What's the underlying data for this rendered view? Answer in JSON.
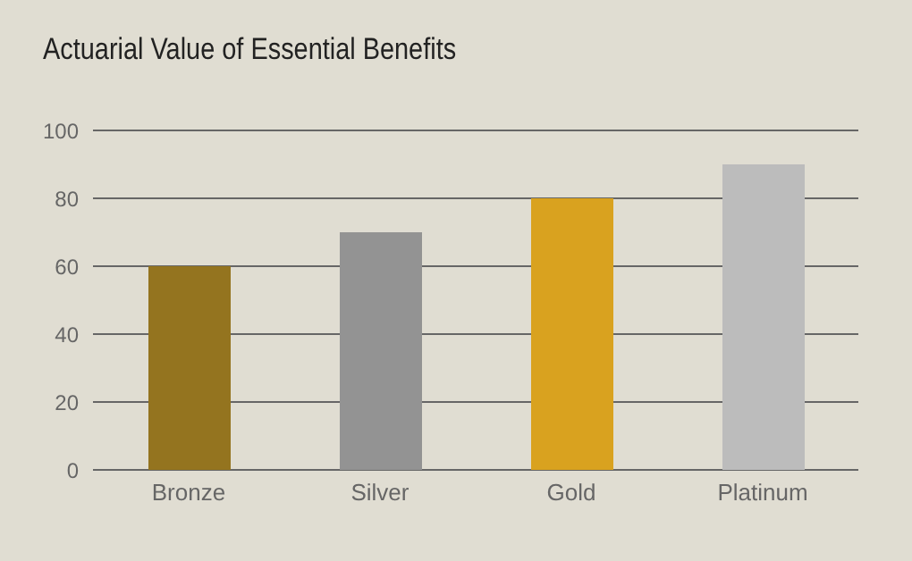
{
  "chart_data": {
    "type": "bar",
    "title": "Actuarial Value of Essential Benefits",
    "categories": [
      "Bronze",
      "Silver",
      "Gold",
      "Platinum"
    ],
    "values": [
      60,
      70,
      80,
      90
    ],
    "colors": [
      "#94741f",
      "#939393",
      "#d9a21f",
      "#bcbcbc"
    ],
    "ylim": [
      0,
      100
    ],
    "yticks": [
      0,
      20,
      40,
      60,
      80,
      100
    ],
    "grid": "y"
  }
}
